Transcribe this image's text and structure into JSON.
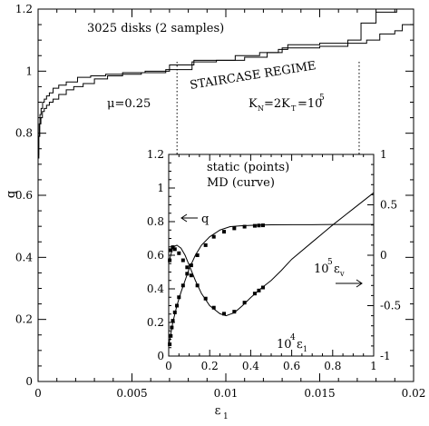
{
  "chart_data": [
    {
      "type": "line",
      "panel": "main",
      "text": {
        "samples": "3025 disks (2 samples)",
        "mu": "μ=0.25",
        "regime": "STAIRCASE REGIME",
        "k_main": "K",
        "k_sub1": "N",
        "k_mid": "=2K",
        "k_sub2": "T",
        "k_eq": "=10",
        "k_exp": "5"
      },
      "xlabel_main": "ε",
      "xlabel_sub": "1",
      "ylabel": "q",
      "xlim": [
        0,
        0.02
      ],
      "ylim": [
        0,
        1.2
      ],
      "xticks": [
        "0",
        "0.005",
        "0.01",
        "0.015",
        "0.02"
      ],
      "yticks": [
        "0",
        "0.2",
        "0.4",
        "0.6",
        "0.8",
        "1",
        "1.2"
      ],
      "regime_bounds": [
        0.0074,
        0.0171
      ],
      "series": [
        {
          "x": [
            0,
            3e-05,
            6e-05,
            0.0001,
            0.00016,
            0.00024,
            0.00033,
            0.00045,
            0.0006,
            0.0008,
            0.0011,
            0.0015,
            0.0021,
            0.0028,
            0.0036,
            0.0045,
            0.0057,
            0.007,
            0.0083,
            0.0097,
            0.0105,
            0.0118,
            0.0128,
            0.0133,
            0.015,
            0.0165,
            0.0172,
            0.018,
            0.0191,
            0.02
          ],
          "y": [
            0.73,
            0.79,
            0.83,
            0.86,
            0.88,
            0.9,
            0.91,
            0.92,
            0.93,
            0.945,
            0.955,
            0.965,
            0.98,
            0.985,
            0.99,
            0.995,
            1.0,
            1.02,
            1.035,
            1.035,
            1.05,
            1.06,
            1.07,
            1.085,
            1.09,
            1.1,
            1.155,
            1.19,
            1.2,
            1.2
          ]
        },
        {
          "x": [
            0,
            4e-05,
            9e-05,
            0.00015,
            0.00023,
            0.00033,
            0.00045,
            0.0006,
            0.0008,
            0.0011,
            0.0015,
            0.0019,
            0.0024,
            0.003,
            0.0037,
            0.0045,
            0.0055,
            0.0068,
            0.0082,
            0.0095,
            0.011,
            0.0122,
            0.013,
            0.015,
            0.0165,
            0.0175,
            0.0182,
            0.019,
            0.0194,
            0.02
          ],
          "y": [
            0.72,
            0.79,
            0.83,
            0.85,
            0.87,
            0.88,
            0.89,
            0.9,
            0.91,
            0.925,
            0.94,
            0.95,
            0.96,
            0.975,
            0.985,
            0.99,
            0.995,
            1.005,
            1.03,
            1.035,
            1.045,
            1.06,
            1.075,
            1.08,
            1.09,
            1.1,
            1.12,
            1.13,
            1.15,
            1.15
          ]
        }
      ]
    },
    {
      "type": "line",
      "panel": "inset",
      "text": {
        "static": "static (points)",
        "md": "MD (curve)",
        "q": "q",
        "ev_base": "10",
        "ev_exp": "5",
        "ev_sym": "ε",
        "ev_sub": "v",
        "e1_base": "10",
        "e1_exp": "4",
        "e1_sym": "ε",
        "e1_sub": "1"
      },
      "xlim": [
        0,
        1
      ],
      "ylim_left": [
        0,
        1.2
      ],
      "ylim_right": [
        -1,
        1
      ],
      "xticks": [
        "0",
        "0.2",
        "0.4",
        "0.6",
        "0.8",
        "1"
      ],
      "yticks_left": [
        "0",
        "0.2",
        "0.4",
        "0.6",
        "0.8",
        "1",
        "1.2"
      ],
      "yticks_right": [
        "-1",
        "-0.5",
        "0",
        "0.5",
        "1"
      ],
      "q_curve": {
        "x": [
          0,
          0.01,
          0.02,
          0.04,
          0.06,
          0.08,
          0.1,
          0.13,
          0.16,
          0.2,
          0.25,
          0.3,
          0.35,
          0.4,
          0.45,
          0.5,
          0.6,
          0.7,
          0.8,
          0.9,
          1.0
        ],
        "y": [
          0.06,
          0.13,
          0.2,
          0.3,
          0.38,
          0.45,
          0.52,
          0.6,
          0.66,
          0.71,
          0.75,
          0.77,
          0.775,
          0.778,
          0.78,
          0.781,
          0.782,
          0.782,
          0.783,
          0.783,
          0.783
        ]
      },
      "q_points": {
        "x": [
          0.005,
          0.01,
          0.015,
          0.02,
          0.03,
          0.04,
          0.05,
          0.07,
          0.09,
          0.11,
          0.14,
          0.18,
          0.22,
          0.27,
          0.32,
          0.37,
          0.42,
          0.44,
          0.46
        ],
        "y": [
          0.07,
          0.12,
          0.17,
          0.21,
          0.26,
          0.3,
          0.35,
          0.42,
          0.49,
          0.54,
          0.6,
          0.66,
          0.71,
          0.74,
          0.76,
          0.77,
          0.775,
          0.777,
          0.778
        ]
      },
      "ev_curve": {
        "x": [
          0,
          0.01,
          0.02,
          0.04,
          0.06,
          0.08,
          0.1,
          0.13,
          0.16,
          0.2,
          0.25,
          0.28,
          0.32,
          0.36,
          0.4,
          0.45,
          0.5,
          0.55,
          0.6,
          0.7,
          0.8,
          0.9,
          1.0
        ],
        "y": [
          -0.08,
          0.0,
          0.08,
          0.1,
          0.07,
          0.0,
          -0.1,
          -0.25,
          -0.38,
          -0.5,
          -0.58,
          -0.6,
          -0.57,
          -0.5,
          -0.42,
          -0.33,
          -0.25,
          -0.15,
          -0.04,
          0.13,
          0.3,
          0.46,
          0.62
        ]
      },
      "ev_points": {
        "x": [
          0.005,
          0.01,
          0.02,
          0.03,
          0.05,
          0.07,
          0.09,
          0.11,
          0.14,
          0.18,
          0.22,
          0.27,
          0.32,
          0.37,
          0.42,
          0.44,
          0.46
        ],
        "y": [
          -0.05,
          0.05,
          0.08,
          0.06,
          0.02,
          -0.05,
          -0.12,
          -0.2,
          -0.3,
          -0.43,
          -0.52,
          -0.58,
          -0.56,
          -0.47,
          -0.38,
          -0.35,
          -0.32
        ]
      }
    }
  ]
}
